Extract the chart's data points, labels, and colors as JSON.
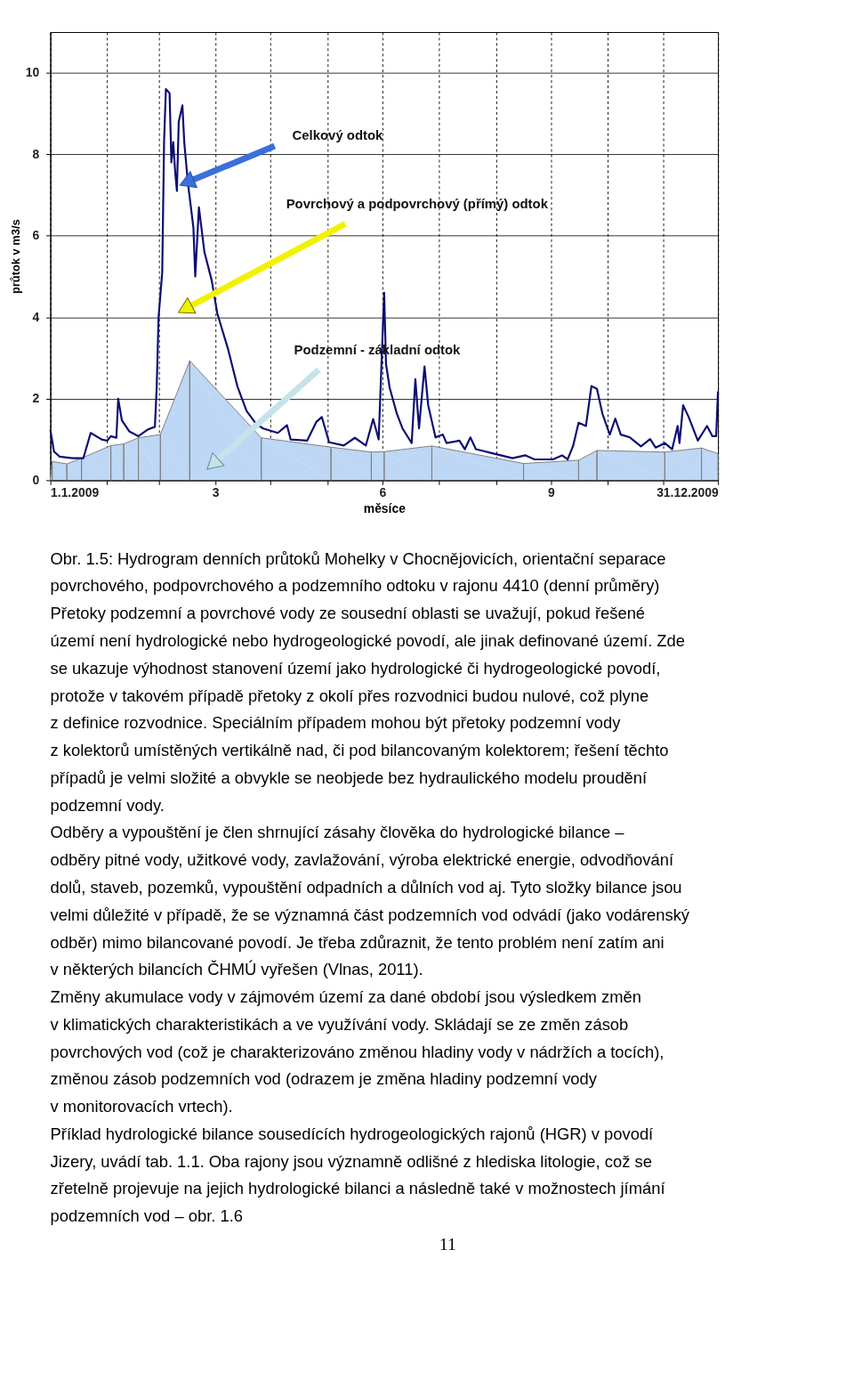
{
  "chart_data": {
    "type": "line",
    "xlabel": "měsíce",
    "ylabel": "průtok v m3/s",
    "xlim": [
      "2009-01-01",
      "2009-12-31"
    ],
    "ylim": [
      0,
      11
    ],
    "xticks": [
      {
        "value": "2009-01-01",
        "label": "1.1.2009"
      },
      {
        "value": "2009-02-01",
        "label": null
      },
      {
        "value": "2009-03-01",
        "label": null
      },
      {
        "value": "2009-04-01",
        "label": "3"
      },
      {
        "value": "2009-05-01",
        "label": null
      },
      {
        "value": "2009-06-01",
        "label": null
      },
      {
        "value": "2009-07-01",
        "label": "6"
      },
      {
        "value": "2009-08-01",
        "label": null
      },
      {
        "value": "2009-09-01",
        "label": null
      },
      {
        "value": "2009-10-01",
        "label": "9"
      },
      {
        "value": "2009-11-01",
        "label": null
      },
      {
        "value": "2009-12-01",
        "label": null
      },
      {
        "value": "2009-12-31",
        "label": "31.12.2009"
      }
    ],
    "yticks": [
      0,
      2,
      4,
      6,
      8,
      10
    ],
    "grid": true,
    "series": [
      {
        "type": "area",
        "color": "#bdd7f5",
        "x": [
          "2009-01-01",
          "2009-01-02",
          "2009-01-10",
          "2009-01-18",
          "2009-02-03",
          "2009-02-10",
          "2009-02-18",
          "2009-03-02",
          "2009-03-18",
          "2009-04-26",
          "2009-06-03",
          "2009-06-25",
          "2009-07-02",
          "2009-07-28",
          "2009-09-16",
          "2009-10-16",
          "2009-10-26",
          "2009-12-02",
          "2009-12-22",
          "2009-12-31"
        ],
        "values": [
          0,
          0.46,
          0.4,
          0.54,
          0.85,
          0.89,
          1.04,
          1.12,
          2.93,
          1.04,
          0.81,
          0.69,
          0.7,
          0.84,
          0.41,
          0.49,
          0.73,
          0.69,
          0.79,
          0.65
        ]
      },
      {
        "color": "#0d0d73",
        "x": [
          "2009-01-01",
          "2009-01-03",
          "2009-01-06",
          "2009-01-13",
          "2009-01-19",
          "2009-01-23",
          "2009-01-29",
          "2009-02-01",
          "2009-02-03",
          "2009-02-06",
          "2009-02-07",
          "2009-02-09",
          "2009-02-13",
          "2009-02-18",
          "2009-02-23",
          "2009-02-27",
          "2009-02-28",
          "2009-03-01",
          "2009-03-03",
          "2009-03-04",
          "2009-03-05",
          "2009-03-07",
          "2009-03-08",
          "2009-03-09",
          "2009-03-10",
          "2009-03-11",
          "2009-03-12",
          "2009-03-14",
          "2009-03-15",
          "2009-03-17",
          "2009-03-20",
          "2009-03-21",
          "2009-03-23",
          "2009-03-26",
          "2009-03-30",
          "2009-04-02",
          "2009-04-08",
          "2009-04-13",
          "2009-04-18",
          "2009-04-23",
          "2009-04-27",
          "2009-05-05",
          "2009-05-10",
          "2009-05-12",
          "2009-05-21",
          "2009-05-26",
          "2009-05-29",
          "2009-06-02",
          "2009-06-10",
          "2009-06-16",
          "2009-06-22",
          "2009-06-26",
          "2009-06-29",
          "2009-07-02",
          "2009-07-03",
          "2009-07-05",
          "2009-07-09",
          "2009-07-12",
          "2009-07-17",
          "2009-07-19",
          "2009-07-21",
          "2009-07-24",
          "2009-07-26",
          "2009-07-30",
          "2009-08-03",
          "2009-08-05",
          "2009-08-12",
          "2009-08-15",
          "2009-08-18",
          "2009-08-21",
          "2009-08-31",
          "2009-09-10",
          "2009-09-17",
          "2009-09-22",
          "2009-10-02",
          "2009-10-07",
          "2009-10-10",
          "2009-10-13",
          "2009-10-16",
          "2009-10-20",
          "2009-10-23",
          "2009-10-26",
          "2009-10-29",
          "2009-11-02",
          "2009-11-05",
          "2009-11-08",
          "2009-11-13",
          "2009-11-19",
          "2009-11-24",
          "2009-11-27",
          "2009-12-02",
          "2009-12-06",
          "2009-12-09",
          "2009-12-10",
          "2009-12-12",
          "2009-12-15",
          "2009-12-20",
          "2009-12-25",
          "2009-12-28",
          "2009-12-30",
          "2009-12-31"
        ],
        "values": [
          1.24,
          0.7,
          0.58,
          0.54,
          0.54,
          1.16,
          1.0,
          0.97,
          1.08,
          1.04,
          2.0,
          1.47,
          1.2,
          1.08,
          1.24,
          1.31,
          2.3,
          4.0,
          5.1,
          8.3,
          9.6,
          9.5,
          7.8,
          8.3,
          7.6,
          7.1,
          8.8,
          9.2,
          8.3,
          7.3,
          6.2,
          5.0,
          6.7,
          5.6,
          4.9,
          4.1,
          3.2,
          2.3,
          1.7,
          1.39,
          1.27,
          1.16,
          1.35,
          1.0,
          0.97,
          1.43,
          1.55,
          0.93,
          0.85,
          1.04,
          0.85,
          1.5,
          1.0,
          4.6,
          2.85,
          2.27,
          1.62,
          1.27,
          0.91,
          2.48,
          1.27,
          2.79,
          1.84,
          1.05,
          1.12,
          0.91,
          0.97,
          0.76,
          1.05,
          0.76,
          0.65,
          0.54,
          0.61,
          0.51,
          0.51,
          0.61,
          0.51,
          0.84,
          1.41,
          1.33,
          2.31,
          2.24,
          1.63,
          1.12,
          1.51,
          1.12,
          1.05,
          0.83,
          1.01,
          0.8,
          0.91,
          0.76,
          1.33,
          0.91,
          1.84,
          1.55,
          0.97,
          1.33,
          1.08,
          1.08,
          2.18
        ]
      }
    ],
    "annotations": [
      "Celkový odtok",
      "Povrchový a podpovrchový (přímý) odtok",
      "Podzemní - základní odtok",
      "Obr. 1.5:  Hydrogram denních průtoků Mohelky v Chocnějovicích, orientační separace",
      "povrchového, podpovrchového a podzemního odtoku v rajonu 4410 (denní průměry)",
      "Přetoky podzemní a povrchové vody ze sousední oblasti se uvažují, pokud řešené",
      "území není hydrologické nebo hydrogeologické povodí, ale jinak definované území. Zde",
      "se ukazuje výhodnost stanovení území jako hydrologické či hydrogeologické povodí,",
      "protože v takovém případě přetoky z okolí přes rozvodnici budou nulové, což plyne",
      "z definice rozvodnice. Speciálním případem mohou být přetoky podzemní vody",
      "z kolektorů umístěných vertikálně nad, či pod bilancovaným kolektorem; řešení těchto",
      "případů je velmi složité a obvykle se neobjede bez hydraulického modelu proudění",
      "podzemní vody.",
      "Odběry a vypouštění je člen shrnující zásahy člověka do hydrologické bilance –",
      "odběry pitné vody, užitkové vody, zavlažování, výroba elektrické energie, odvodňování",
      "dolů, staveb, pozemků, vypouštění odpadních a důlních vod aj. Tyto složky bilance jsou",
      "velmi důležité v případě, že se významná část podzemních vod odvádí (jako vodárenský",
      "odběr) mimo bilancované povodí. Je třeba zdůraznit, že tento problém není zatím ani",
      "v některých bilancích ČHMÚ vyřešen (Vlnas, 2011).",
      "Změny akumulace vody v zájmovém území za dané období jsou výsledkem změn",
      "v klimatických charakteristikách a ve využívání vody. Skládají se ze změn zásob",
      "povrchových vod (což je charakterizováno změnou hladiny vody v nádržích a tocích),",
      "změnou zásob podzemních vod (odrazem je změna hladiny podzemní vody",
      "v monitorovacích vrtech).",
      "Příklad hydrologické bilance sousedících hydrogeologických rajonů (HGR) v povodí",
      "Jizery, uvádí tab. 1.1. Oba rajony jsou významně odlišné z hlediska litologie, což se",
      "zřetelně projevuje na jejich hydrologické bilanci a následně také v možnostech jímání",
      "podzemních vod – obr. 1.6",
      "11"
    ]
  }
}
